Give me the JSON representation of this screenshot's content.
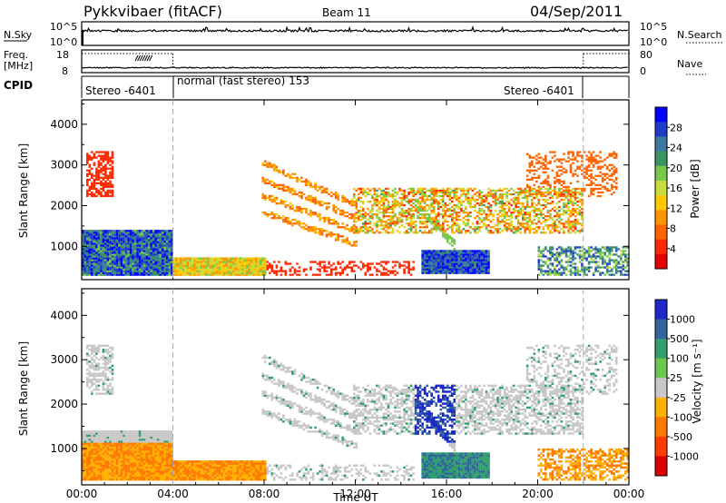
{
  "header": {
    "station": "Pykkvibaer (fitACF)",
    "beam": "Beam 11",
    "date": "04/Sep/2011"
  },
  "nsky_panel": {
    "left_label": "N.Sky",
    "left_ticks": [
      "10^5",
      "10^0"
    ],
    "right_ticks": [
      "10^5",
      "10^0"
    ],
    "right_label": "N.Search"
  },
  "freq_panel": {
    "left_label_line1": "Freq.",
    "left_label_line2": "[MHz]",
    "left_ticks": [
      "18",
      "8"
    ],
    "right_ticks": [
      "80",
      "0"
    ],
    "right_label": "Nave"
  },
  "cpid": {
    "label": "CPID",
    "segments": [
      {
        "label": "Stereo -6401",
        "start_hour": 0.0,
        "end_hour": 4.0
      },
      {
        "label": "normal (fast stereo) 153",
        "start_hour": 4.0,
        "end_hour": 22.0
      },
      {
        "label": "Stereo -6401",
        "start_hour": 22.0,
        "end_hour": 24.0
      }
    ]
  },
  "chart_data": [
    {
      "type": "heatmap",
      "name": "power",
      "x_hours": [
        0,
        24
      ],
      "ylim": [
        180,
        4600
      ],
      "ylabel": "Slant Range [km]",
      "yticks": [
        1000,
        2000,
        3000,
        4000
      ],
      "xtick_labels": [
        "00:00",
        "04:00",
        "08:00",
        "12:00",
        "16:00",
        "20:00",
        "00:00"
      ],
      "colorbar": {
        "label": "Power [dB]",
        "ticks": [
          "4",
          "8",
          "12",
          "16",
          "20",
          "24",
          "28"
        ],
        "colors": [
          "#0000ff",
          "#1e3cc8",
          "#3c78a0",
          "#3c9664",
          "#78c84b",
          "#c8dc3c",
          "#ffc800",
          "#ff9600",
          "#ff6400",
          "#ff2800",
          "#e60000"
        ]
      },
      "features": [
        {
          "desc": "near-range high power",
          "t": [
            0.3,
            4.0
          ],
          "r": [
            300,
            1400
          ],
          "level": 20
        },
        {
          "desc": "strong core",
          "t": [
            1.8,
            3.2
          ],
          "r": [
            300,
            1300
          ],
          "level": 28
        },
        {
          "desc": "afternoon strong band",
          "t": [
            14.8,
            17.8
          ],
          "r": [
            400,
            900
          ],
          "level": 27
        }
      ]
    },
    {
      "type": "heatmap",
      "name": "velocity",
      "x_hours": [
        0,
        24
      ],
      "ylim": [
        180,
        4600
      ],
      "ylabel": "Slant Range [km]",
      "xlabel": "Time UT",
      "yticks": [
        1000,
        2000,
        3000,
        4000
      ],
      "xtick_labels": [
        "00:00",
        "04:00",
        "08:00",
        "12:00",
        "16:00",
        "20:00",
        "00:00"
      ],
      "colorbar": {
        "label": "Velocity [m s⁻¹]",
        "ticks": [
          "1000",
          "500",
          "100",
          "25",
          "-25",
          "-100",
          "-500",
          "-1000"
        ],
        "colors": [
          "#1e28c8",
          "#3264a0",
          "#32a06e",
          "#6ec850",
          "#c8c8c8",
          "#ffb000",
          "#ff7800",
          "#ff3c00",
          "#dc0000"
        ]
      }
    }
  ]
}
